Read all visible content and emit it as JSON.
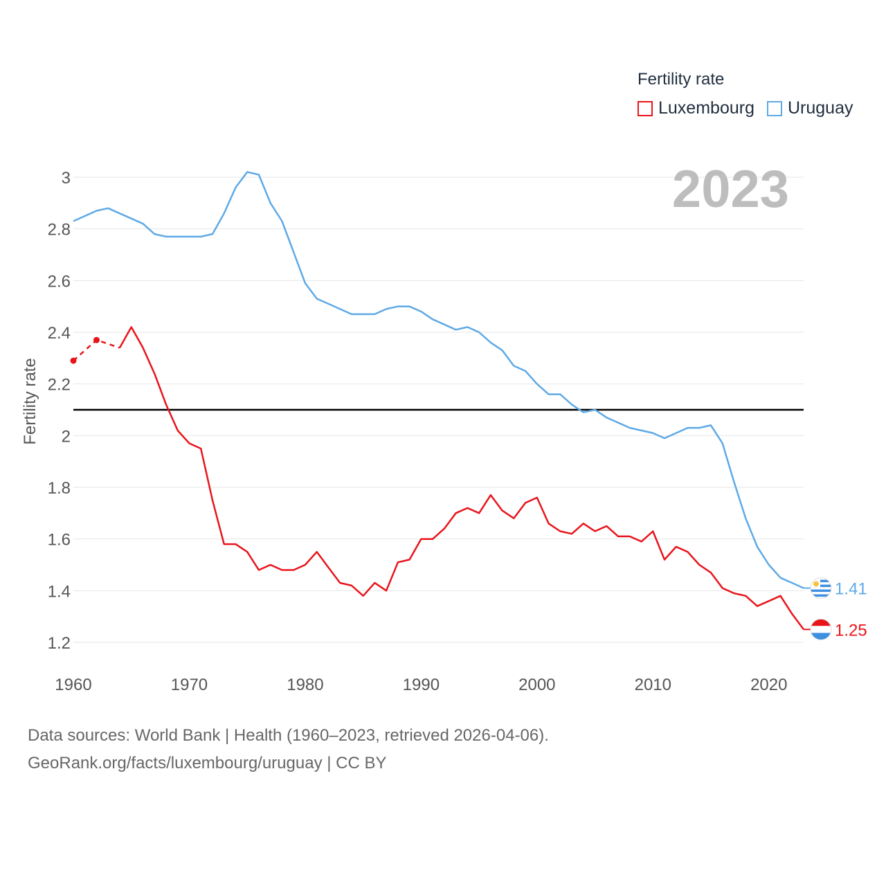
{
  "chart_data": {
    "type": "line",
    "title": "",
    "ylabel": "Fertility rate",
    "xlabel": "",
    "year_label": "2023",
    "xlim": [
      1960,
      2023
    ],
    "ylim": [
      1.2,
      3.0
    ],
    "x_ticks": [
      1960,
      1970,
      1980,
      1990,
      2000,
      2010,
      2020
    ],
    "y_ticks": [
      1.2,
      1.4,
      1.6,
      1.8,
      2.0,
      2.2,
      2.4,
      2.6,
      2.8,
      3.0
    ],
    "y_tick_labels": [
      "1.2",
      "1.4",
      "1.6",
      "1.8",
      "2",
      "2.2",
      "2.4",
      "2.6",
      "2.8",
      "3"
    ],
    "reference_line": {
      "value": 2.1,
      "color": "#000000"
    },
    "grid": true,
    "legend": {
      "title": "Fertility rate",
      "position": "top-right"
    },
    "series": [
      {
        "name": "Luxembourg",
        "color": "#e8141b",
        "end_label": "1.25",
        "flag": "luxembourg-flag",
        "estimated_points": [
          [
            1960,
            2.29
          ],
          [
            1962,
            2.37
          ],
          [
            1964,
            2.34
          ]
        ],
        "points": [
          [
            1964,
            2.34
          ],
          [
            1965,
            2.42
          ],
          [
            1966,
            2.34
          ],
          [
            1967,
            2.24
          ],
          [
            1968,
            2.12
          ],
          [
            1969,
            2.02
          ],
          [
            1970,
            1.97
          ],
          [
            1971,
            1.95
          ],
          [
            1972,
            1.75
          ],
          [
            1973,
            1.58
          ],
          [
            1974,
            1.58
          ],
          [
            1975,
            1.55
          ],
          [
            1976,
            1.48
          ],
          [
            1977,
            1.5
          ],
          [
            1978,
            1.48
          ],
          [
            1979,
            1.48
          ],
          [
            1980,
            1.5
          ],
          [
            1981,
            1.55
          ],
          [
            1982,
            1.49
          ],
          [
            1983,
            1.43
          ],
          [
            1984,
            1.42
          ],
          [
            1985,
            1.38
          ],
          [
            1986,
            1.43
          ],
          [
            1987,
            1.4
          ],
          [
            1988,
            1.51
          ],
          [
            1989,
            1.52
          ],
          [
            1990,
            1.6
          ],
          [
            1991,
            1.6
          ],
          [
            1992,
            1.64
          ],
          [
            1993,
            1.7
          ],
          [
            1994,
            1.72
          ],
          [
            1995,
            1.7
          ],
          [
            1996,
            1.77
          ],
          [
            1997,
            1.71
          ],
          [
            1998,
            1.68
          ],
          [
            1999,
            1.74
          ],
          [
            2000,
            1.76
          ],
          [
            2001,
            1.66
          ],
          [
            2002,
            1.63
          ],
          [
            2003,
            1.62
          ],
          [
            2004,
            1.66
          ],
          [
            2005,
            1.63
          ],
          [
            2006,
            1.65
          ],
          [
            2007,
            1.61
          ],
          [
            2008,
            1.61
          ],
          [
            2009,
            1.59
          ],
          [
            2010,
            1.63
          ],
          [
            2011,
            1.52
          ],
          [
            2012,
            1.57
          ],
          [
            2013,
            1.55
          ],
          [
            2014,
            1.5
          ],
          [
            2015,
            1.47
          ],
          [
            2016,
            1.41
          ],
          [
            2017,
            1.39
          ],
          [
            2018,
            1.38
          ],
          [
            2019,
            1.34
          ],
          [
            2020,
            1.36
          ],
          [
            2021,
            1.38
          ],
          [
            2022,
            1.31
          ],
          [
            2023,
            1.25
          ]
        ]
      },
      {
        "name": "Uruguay",
        "color": "#5ea9e6",
        "end_label": "1.41",
        "flag": "uruguay-flag",
        "estimated_points": [],
        "points": [
          [
            1960,
            2.83
          ],
          [
            1961,
            2.85
          ],
          [
            1962,
            2.87
          ],
          [
            1963,
            2.88
          ],
          [
            1964,
            2.86
          ],
          [
            1965,
            2.84
          ],
          [
            1966,
            2.82
          ],
          [
            1967,
            2.78
          ],
          [
            1968,
            2.77
          ],
          [
            1969,
            2.77
          ],
          [
            1970,
            2.77
          ],
          [
            1971,
            2.77
          ],
          [
            1972,
            2.78
          ],
          [
            1973,
            2.86
          ],
          [
            1974,
            2.96
          ],
          [
            1975,
            3.02
          ],
          [
            1976,
            3.01
          ],
          [
            1977,
            2.9
          ],
          [
            1978,
            2.83
          ],
          [
            1979,
            2.71
          ],
          [
            1980,
            2.59
          ],
          [
            1981,
            2.53
          ],
          [
            1982,
            2.51
          ],
          [
            1983,
            2.49
          ],
          [
            1984,
            2.47
          ],
          [
            1985,
            2.47
          ],
          [
            1986,
            2.47
          ],
          [
            1987,
            2.49
          ],
          [
            1988,
            2.5
          ],
          [
            1989,
            2.5
          ],
          [
            1990,
            2.48
          ],
          [
            1991,
            2.45
          ],
          [
            1992,
            2.43
          ],
          [
            1993,
            2.41
          ],
          [
            1994,
            2.42
          ],
          [
            1995,
            2.4
          ],
          [
            1996,
            2.36
          ],
          [
            1997,
            2.33
          ],
          [
            1998,
            2.27
          ],
          [
            1999,
            2.25
          ],
          [
            2000,
            2.2
          ],
          [
            2001,
            2.16
          ],
          [
            2002,
            2.16
          ],
          [
            2003,
            2.12
          ],
          [
            2004,
            2.09
          ],
          [
            2005,
            2.1
          ],
          [
            2006,
            2.07
          ],
          [
            2007,
            2.05
          ],
          [
            2008,
            2.03
          ],
          [
            2009,
            2.02
          ],
          [
            2010,
            2.01
          ],
          [
            2011,
            1.99
          ],
          [
            2012,
            2.01
          ],
          [
            2013,
            2.03
          ],
          [
            2014,
            2.03
          ],
          [
            2015,
            2.04
          ],
          [
            2016,
            1.97
          ],
          [
            2017,
            1.82
          ],
          [
            2018,
            1.68
          ],
          [
            2019,
            1.57
          ],
          [
            2020,
            1.5
          ],
          [
            2021,
            1.45
          ],
          [
            2022,
            1.43
          ],
          [
            2023,
            1.41
          ]
        ]
      }
    ]
  },
  "footer": {
    "sources": "Data sources: World Bank | Health (1960–2023, retrieved 2026-04-06).",
    "link": "GeoRank.org/facts/luxembourg/uruguay",
    "license": " | CC BY"
  }
}
